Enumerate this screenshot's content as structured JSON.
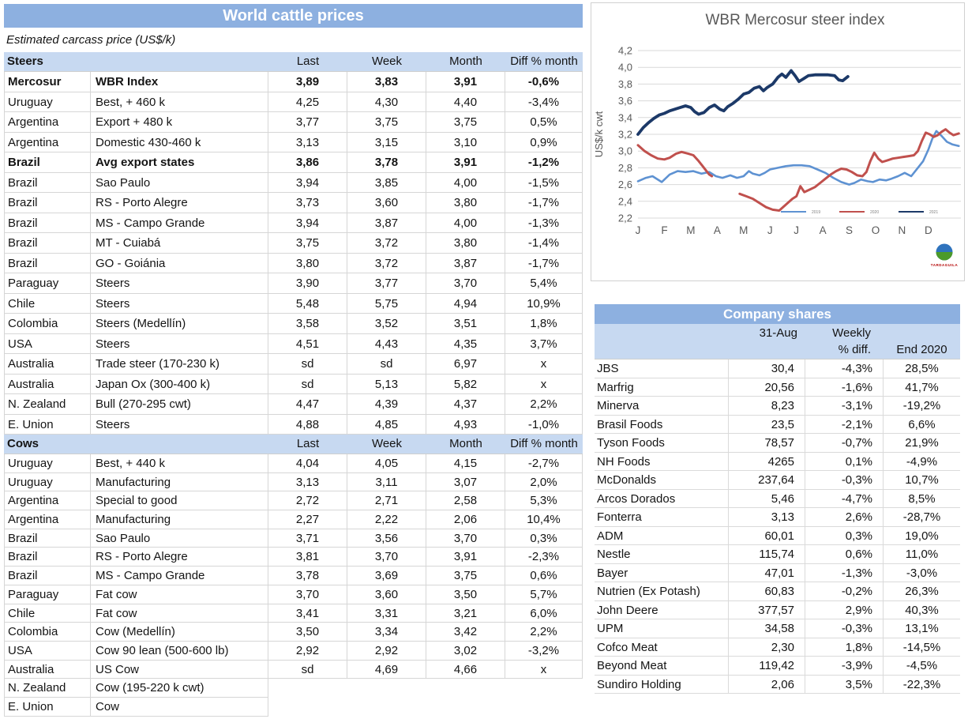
{
  "colors": {
    "title_bar_blue": "#8db0e0",
    "header_light_blue": "#c7d9f1",
    "grid_border": "#d6d6d6",
    "axis_text_gray": "#595959",
    "series_2019_blue": "#5e92d2",
    "series_2020_red": "#c0504d",
    "series_2021_navy": "#1c3968",
    "logo_text_red": "#b30000"
  },
  "cattle_table": {
    "title": "World cattle prices",
    "subtitle": "Estimated carcass price (US$/k)",
    "columns": [
      "Last",
      "Week",
      "Month",
      "Diff % month"
    ],
    "sections": [
      {
        "name": "Steers",
        "rows": [
          [
            "Mercosur",
            "WBR Index",
            "3,89",
            "3,83",
            "3,91",
            "-0,6%",
            true
          ],
          [
            "Uruguay",
            "Best, + 460 k",
            "4,25",
            "4,30",
            "4,40",
            "-3,4%"
          ],
          [
            "Argentina",
            "Export + 480 k",
            "3,77",
            "3,75",
            "3,75",
            "0,5%"
          ],
          [
            "Argentina",
            "Domestic 430-460 k",
            "3,13",
            "3,15",
            "3,10",
            "0,9%"
          ],
          [
            "Brazil",
            "Avg export states",
            "3,86",
            "3,78",
            "3,91",
            "-1,2%",
            true
          ],
          [
            "Brazil",
            "Sao Paulo",
            "3,94",
            "3,85",
            "4,00",
            "-1,5%"
          ],
          [
            "Brazil",
            "RS - Porto Alegre",
            "3,73",
            "3,60",
            "3,80",
            "-1,7%"
          ],
          [
            "Brazil",
            "MS - Campo Grande",
            "3,94",
            "3,87",
            "4,00",
            "-1,3%"
          ],
          [
            "Brazil",
            "MT - Cuiabá",
            "3,75",
            "3,72",
            "3,80",
            "-1,4%"
          ],
          [
            "Brazil",
            "GO - Goiánia",
            "3,80",
            "3,72",
            "3,87",
            "-1,7%"
          ],
          [
            "Paraguay",
            "Steers",
            "3,90",
            "3,77",
            "3,70",
            "5,4%"
          ],
          [
            "Chile",
            "Steers",
            "5,48",
            "5,75",
            "4,94",
            "10,9%"
          ],
          [
            "Colombia",
            "Steers (Medellín)",
            "3,58",
            "3,52",
            "3,51",
            "1,8%"
          ],
          [
            "USA",
            "Steers",
            "4,51",
            "4,43",
            "4,35",
            "3,7%"
          ],
          [
            "Australia",
            "Trade steer (170-230 k)",
            "sd",
            "sd",
            "6,97",
            "x"
          ],
          [
            "Australia",
            "Japan Ox (300-400 k)",
            "sd",
            "5,13",
            "5,82",
            "x"
          ],
          [
            "N. Zealand",
            "Bull (270-295 cwt)",
            "4,47",
            "4,39",
            "4,37",
            "2,2%"
          ],
          [
            "E. Union",
            "Steers",
            "4,88",
            "4,85",
            "4,93",
            "-1,0%"
          ]
        ]
      },
      {
        "name": "Cows",
        "rows": [
          [
            "Uruguay",
            "Best, + 440 k",
            "4,04",
            "4,05",
            "4,15",
            "-2,7%"
          ],
          [
            "Uruguay",
            "Manufacturing",
            "3,13",
            "3,11",
            "3,07",
            "2,0%"
          ],
          [
            "Argentina",
            "Special to good",
            "2,72",
            "2,71",
            "2,58",
            "5,3%"
          ],
          [
            "Argentina",
            "Manufacturing",
            "2,27",
            "2,22",
            "2,06",
            "10,4%"
          ],
          [
            "Brazil",
            "Sao Paulo",
            "3,71",
            "3,56",
            "3,70",
            "0,3%"
          ],
          [
            "Brazil",
            "RS - Porto Alegre",
            "3,81",
            "3,70",
            "3,91",
            "-2,3%"
          ],
          [
            "Brazil",
            "MS - Campo Grande",
            "3,78",
            "3,69",
            "3,75",
            "0,6%"
          ],
          [
            "Paraguay",
            "Fat cow",
            "3,70",
            "3,60",
            "3,50",
            "5,7%"
          ],
          [
            "Chile",
            "Fat cow",
            "3,41",
            "3,31",
            "3,21",
            "6,0%"
          ],
          [
            "Colombia",
            "Cow (Medellín)",
            "3,50",
            "3,34",
            "3,42",
            "2,2%"
          ],
          [
            "USA",
            "Cow 90 lean (500-600 lb)",
            "2,92",
            "2,92",
            "3,02",
            "-3,2%"
          ],
          [
            "Australia",
            "US Cow",
            "sd",
            "4,69",
            "4,66",
            "x"
          ],
          [
            "N. Zealand",
            "Cow (195-220 k cwt)",
            null,
            null,
            null,
            null
          ],
          [
            "E. Union",
            "Cow",
            null,
            null,
            null,
            null
          ]
        ]
      }
    ]
  },
  "company_table": {
    "title": "Company shares",
    "header": {
      "date": "31-Aug",
      "weekly_line1": "Weekly",
      "weekly_line2": "% diff.",
      "end": "End 2020"
    },
    "rows": [
      [
        "JBS",
        "30,4",
        "-4,3%",
        "28,5%"
      ],
      [
        "Marfrig",
        "20,56",
        "-1,6%",
        "41,7%"
      ],
      [
        "Minerva",
        "8,23",
        "-3,1%",
        "-19,2%"
      ],
      [
        "Brasil Foods",
        "23,5",
        "-2,1%",
        "6,6%"
      ],
      [
        "Tyson Foods",
        "78,57",
        "-0,7%",
        "21,9%"
      ],
      [
        "NH Foods",
        "4265",
        "0,1%",
        "-4,9%"
      ],
      [
        "McDonalds",
        "237,64",
        "-0,3%",
        "10,7%"
      ],
      [
        "Arcos Dorados",
        "5,46",
        "-4,7%",
        "8,5%"
      ],
      [
        "Fonterra",
        "3,13",
        "2,6%",
        "-28,7%"
      ],
      [
        "ADM",
        "60,01",
        "0,3%",
        "19,0%"
      ],
      [
        "Nestle",
        "115,74",
        "0,6%",
        "11,0%"
      ],
      [
        "Bayer",
        "47,01",
        "-1,3%",
        "-3,0%"
      ],
      [
        "Nutrien (Ex Potash)",
        "60,83",
        "-0,2%",
        "26,3%"
      ],
      [
        "John Deere",
        "377,57",
        "2,9%",
        "40,3%"
      ],
      [
        "UPM",
        "34,58",
        "-0,3%",
        "13,1%"
      ],
      [
        "Cofco Meat",
        "2,30",
        "1,8%",
        "-14,5%"
      ],
      [
        "Beyond Meat",
        "119,42",
        "-3,9%",
        "-4,5%"
      ],
      [
        "Sundiro Holding",
        "2,06",
        "3,5%",
        "-22,3%"
      ]
    ]
  },
  "chart_data": {
    "type": "line",
    "title": "WBR Mercosur steer index",
    "ylabel": "US$/k cwt",
    "ylim": [
      2.2,
      4.2
    ],
    "ytick_step": 0.2,
    "x_months": [
      "J",
      "F",
      "M",
      "A",
      "M",
      "J",
      "J",
      "A",
      "S",
      "O",
      "N",
      "D"
    ],
    "grid": true,
    "legend_position": "inside-bottom-right",
    "logo_text": "TARDAGUILA",
    "series": [
      {
        "name": "2019",
        "color": "#5e92d2",
        "width": 2.6,
        "x": [
          0.0,
          0.3,
          0.55,
          0.9,
          1.2,
          1.5,
          1.8,
          2.1,
          2.4,
          2.7,
          2.95,
          3.2,
          3.5,
          3.75,
          4.0,
          4.2,
          4.35,
          4.6,
          4.8,
          5.0,
          5.3,
          5.6,
          5.9,
          6.2,
          6.5,
          6.8,
          7.1,
          7.4,
          7.7,
          8.0,
          8.2,
          8.45,
          8.7,
          8.9,
          9.15,
          9.4,
          9.6,
          9.85,
          10.1,
          10.35,
          10.6,
          10.8,
          11.0,
          11.15,
          11.3,
          11.5,
          11.7,
          11.9,
          12.15
        ],
        "y": [
          2.64,
          2.68,
          2.7,
          2.63,
          2.72,
          2.76,
          2.75,
          2.76,
          2.73,
          2.75,
          2.7,
          2.68,
          2.71,
          2.68,
          2.7,
          2.76,
          2.73,
          2.71,
          2.74,
          2.78,
          2.8,
          2.82,
          2.83,
          2.83,
          2.82,
          2.78,
          2.74,
          2.68,
          2.63,
          2.6,
          2.62,
          2.66,
          2.64,
          2.63,
          2.66,
          2.65,
          2.67,
          2.7,
          2.74,
          2.7,
          2.8,
          2.88,
          3.02,
          3.15,
          3.24,
          3.18,
          3.11,
          3.08,
          3.06
        ]
      },
      {
        "name": "2020",
        "color": "#c0504d",
        "width": 3,
        "x": [
          0.0,
          0.25,
          0.5,
          0.75,
          1.0,
          1.2,
          1.45,
          1.65,
          1.9,
          2.1,
          2.3,
          2.5,
          2.7,
          2.8,
          null,
          3.85,
          4.1,
          4.35,
          4.6,
          4.85,
          5.1,
          5.35,
          5.6,
          5.85,
          6.0,
          6.15,
          6.3,
          6.5,
          6.7,
          6.9,
          7.1,
          7.3,
          7.5,
          7.7,
          7.9,
          8.1,
          8.3,
          8.5,
          8.65,
          8.8,
          8.95,
          9.1,
          9.25,
          9.45,
          9.65,
          9.85,
          10.05,
          10.25,
          10.45,
          10.6,
          10.75,
          10.9,
          11.05,
          11.2,
          11.35,
          11.5,
          11.65,
          11.8,
          11.95,
          12.15
        ],
        "y": [
          3.07,
          3.0,
          2.95,
          2.91,
          2.9,
          2.92,
          2.97,
          2.99,
          2.97,
          2.95,
          2.88,
          2.8,
          2.72,
          2.7,
          null,
          2.49,
          2.46,
          2.43,
          2.38,
          2.33,
          2.3,
          2.29,
          2.36,
          2.43,
          2.46,
          2.58,
          2.51,
          2.54,
          2.57,
          2.62,
          2.67,
          2.72,
          2.76,
          2.79,
          2.78,
          2.75,
          2.71,
          2.7,
          2.75,
          2.88,
          2.98,
          2.91,
          2.87,
          2.89,
          2.91,
          2.92,
          2.93,
          2.94,
          2.95,
          3.0,
          3.12,
          3.22,
          3.2,
          3.17,
          3.19,
          3.23,
          3.26,
          3.22,
          3.19,
          3.21
        ]
      },
      {
        "name": "2021",
        "color": "#1c3968",
        "width": 3.8,
        "x": [
          0.0,
          0.2,
          0.4,
          0.6,
          0.8,
          1.0,
          1.2,
          1.4,
          1.6,
          1.8,
          2.0,
          2.15,
          2.3,
          2.5,
          2.7,
          2.9,
          3.1,
          3.25,
          3.4,
          3.6,
          3.8,
          4.0,
          4.2,
          4.4,
          4.6,
          4.75,
          4.9,
          5.1,
          5.3,
          5.45,
          5.6,
          5.8,
          5.95,
          6.1,
          6.3,
          6.45,
          6.7,
          6.95,
          7.2,
          7.45,
          7.6,
          7.75,
          7.95
        ],
        "y": [
          3.2,
          3.28,
          3.34,
          3.39,
          3.43,
          3.45,
          3.48,
          3.5,
          3.52,
          3.54,
          3.52,
          3.47,
          3.44,
          3.46,
          3.52,
          3.55,
          3.5,
          3.48,
          3.53,
          3.57,
          3.62,
          3.68,
          3.7,
          3.75,
          3.77,
          3.72,
          3.76,
          3.8,
          3.88,
          3.92,
          3.88,
          3.96,
          3.9,
          3.83,
          3.87,
          3.9,
          3.91,
          3.91,
          3.91,
          3.9,
          3.85,
          3.84,
          3.89
        ]
      }
    ]
  }
}
